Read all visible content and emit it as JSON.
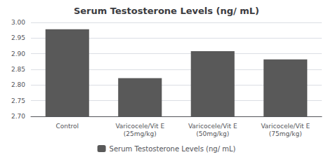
{
  "chart_data": {
    "type": "bar",
    "title": "Serum Testosterone Levels (ng/ mL)",
    "categories": [
      "Control",
      "Varicocele/Vit E\n(25mg/kg)",
      "Varicocele/Vit E\n(50mg/kg)",
      "Varicocele/Vit E\n(75mg/kg)"
    ],
    "series": [
      {
        "name": "Serum Testosterone Levels (ng/ mL)",
        "color": "#595959",
        "values": [
          2.978,
          2.822,
          2.908,
          2.882
        ]
      }
    ],
    "ylim": [
      2.7,
      3.0
    ],
    "yticks": [
      {
        "value": 2.7,
        "label": "2.70"
      },
      2.75,
      {
        "value": 2.8,
        "label": "2.80"
      },
      2.85,
      {
        "value": 2.9,
        "label": "2.90"
      },
      2.95,
      {
        "value": 3.0,
        "label": "3.00"
      }
    ],
    "grid": true,
    "legend": "bottom"
  }
}
